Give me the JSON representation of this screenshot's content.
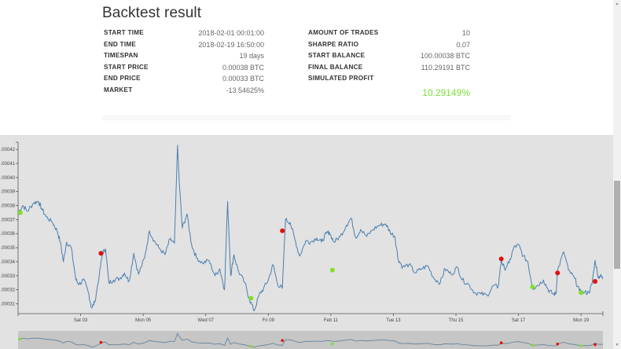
{
  "title": "Backtest result",
  "stats_left": [
    {
      "label": "START TIME",
      "value": "2018-02-01 00:01:00"
    },
    {
      "label": "END TIME",
      "value": "2018-02-19 16:50:00"
    },
    {
      "label": "TIMESPAN",
      "value": "19 days"
    },
    {
      "label": "START PRICE",
      "value": "0.00038 BTC"
    },
    {
      "label": "END PRICE",
      "value": "0.00033 BTC"
    },
    {
      "label": "MARKET",
      "value": "-13.54625%"
    }
  ],
  "stats_right": [
    {
      "label": "AMOUNT OF TRADES",
      "value": "10"
    },
    {
      "label": "SHARPE RATIO",
      "value": "0.07"
    },
    {
      "label": "START BALANCE",
      "value": "100.00038 BTC"
    },
    {
      "label": "FINAL BALANCE",
      "value": "110.29191 BTC"
    },
    {
      "label": "SIMULATED PROFIT",
      "value": ""
    }
  ],
  "simulated_profit": "10.29149%",
  "colors": {
    "profit": "#7dde3a",
    "line": "#4a7fb0",
    "buy": "#7fe02a",
    "sell": "#e01010",
    "chart_bg": "#e2e2e2",
    "navigator_bg": "#c6c6c6"
  },
  "scrollbar": {
    "up_icon": "▲",
    "down_icon": "▼"
  },
  "chart_data": {
    "type": "line",
    "title": "",
    "xlabel": "",
    "ylabel": "",
    "ylim": [
      0.000303,
      0.000424
    ],
    "y_ticks": [
      ".00031",
      ".00032",
      ".00033",
      ".00034",
      ".00035",
      ".00036",
      ".00037",
      ".00038",
      ".00039",
      ".00040",
      ".00041",
      ".00042"
    ],
    "x_ticks": [
      "Sat 03",
      "Mon 05",
      "Wed 07",
      "Fri 09",
      "Feb 11",
      "Tue 13",
      "Thu 15",
      "Sat 17",
      "Mon 19"
    ],
    "x_tick_days": [
      2,
      4,
      6,
      8,
      10,
      12,
      14,
      16,
      18
    ],
    "x_range_days": [
      0,
      18.7
    ],
    "series": [
      {
        "name": "price",
        "points": [
          [
            0.0,
            0.000375
          ],
          [
            0.15,
            0.00038
          ],
          [
            0.3,
            0.000376
          ],
          [
            0.5,
            0.000382
          ],
          [
            0.65,
            0.000383
          ],
          [
            0.75,
            0.000378
          ],
          [
            0.9,
            0.000372
          ],
          [
            1.1,
            0.000368
          ],
          [
            1.25,
            0.000362
          ],
          [
            1.35,
            0.000354
          ],
          [
            1.45,
            0.00034
          ],
          [
            1.55,
            0.000354
          ],
          [
            1.7,
            0.00035
          ],
          [
            1.85,
            0.000327
          ],
          [
            1.95,
            0.000324
          ],
          [
            2.1,
            0.000327
          ],
          [
            2.25,
            0.000318
          ],
          [
            2.35,
            0.000307
          ],
          [
            2.45,
            0.000311
          ],
          [
            2.6,
            0.000331
          ],
          [
            2.7,
            0.000346
          ],
          [
            2.8,
            0.000349
          ],
          [
            2.9,
            0.000325
          ],
          [
            3.05,
            0.000327
          ],
          [
            3.25,
            0.000328
          ],
          [
            3.4,
            0.000332
          ],
          [
            3.55,
            0.000326
          ],
          [
            3.7,
            0.000346
          ],
          [
            3.85,
            0.000331
          ],
          [
            4.05,
            0.000343
          ],
          [
            4.2,
            0.000362
          ],
          [
            4.35,
            0.000355
          ],
          [
            4.5,
            0.00035
          ],
          [
            4.7,
            0.000345
          ],
          [
            4.85,
            0.000356
          ],
          [
            5.0,
            0.000353
          ],
          [
            5.1,
            0.000423
          ],
          [
            5.15,
            0.000398
          ],
          [
            5.25,
            0.000364
          ],
          [
            5.4,
            0.000374
          ],
          [
            5.55,
            0.000352
          ],
          [
            5.7,
            0.000343
          ],
          [
            5.9,
            0.000339
          ],
          [
            6.1,
            0.000341
          ],
          [
            6.3,
            0.00033
          ],
          [
            6.45,
            0.000335
          ],
          [
            6.6,
            0.00032
          ],
          [
            6.7,
            0.000383
          ],
          [
            6.8,
            0.00033
          ],
          [
            6.9,
            0.000345
          ],
          [
            7.05,
            0.000333
          ],
          [
            7.25,
            0.000325
          ],
          [
            7.4,
            0.000313
          ],
          [
            7.55,
            0.000305
          ],
          [
            7.7,
            0.000316
          ],
          [
            7.85,
            0.000321
          ],
          [
            8.0,
            0.000327
          ],
          [
            8.15,
            0.000338
          ],
          [
            8.3,
            0.000324
          ],
          [
            8.45,
            0.000321
          ],
          [
            8.55,
            0.00037
          ],
          [
            8.7,
            0.000368
          ],
          [
            8.85,
            0.000356
          ],
          [
            9.0,
            0.000344
          ],
          [
            9.2,
            0.000355
          ],
          [
            9.35,
            0.000354
          ],
          [
            9.55,
            0.000357
          ],
          [
            9.7,
            0.000354
          ],
          [
            9.85,
            0.00036
          ],
          [
            9.95,
            0.000361
          ],
          [
            10.1,
            0.000354
          ],
          [
            10.3,
            0.000358
          ],
          [
            10.5,
            0.000366
          ],
          [
            10.65,
            0.000371
          ],
          [
            10.8,
            0.000357
          ],
          [
            10.95,
            0.000363
          ],
          [
            11.15,
            0.000358
          ],
          [
            11.35,
            0.000363
          ],
          [
            11.55,
            0.000366
          ],
          [
            11.75,
            0.000367
          ],
          [
            11.9,
            0.000361
          ],
          [
            12.05,
            0.000358
          ],
          [
            12.15,
            0.000342
          ],
          [
            12.3,
            0.000336
          ],
          [
            12.5,
            0.000338
          ],
          [
            12.7,
            0.000332
          ],
          [
            12.9,
            0.000335
          ],
          [
            13.1,
            0.000337
          ],
          [
            13.3,
            0.000328
          ],
          [
            13.5,
            0.000325
          ],
          [
            13.65,
            0.000335
          ],
          [
            13.85,
            0.000331
          ],
          [
            14.05,
            0.000336
          ],
          [
            14.2,
            0.000327
          ],
          [
            14.4,
            0.000324
          ],
          [
            14.6,
            0.000318
          ],
          [
            14.8,
            0.000317
          ],
          [
            15.0,
            0.000316
          ],
          [
            15.2,
            0.000323
          ],
          [
            15.35,
            0.000322
          ],
          [
            15.45,
            0.000341
          ],
          [
            15.55,
            0.000335
          ],
          [
            15.7,
            0.000339
          ],
          [
            15.85,
            0.00035
          ],
          [
            16.0,
            0.000352
          ],
          [
            16.15,
            0.000344
          ],
          [
            16.3,
            0.00034
          ],
          [
            16.45,
            0.000321
          ],
          [
            16.6,
            0.000323
          ],
          [
            16.8,
            0.000327
          ],
          [
            16.95,
            0.00032
          ],
          [
            17.1,
            0.000317
          ],
          [
            17.2,
            0.000317
          ],
          [
            17.25,
            0.000334
          ],
          [
            17.45,
            0.000347
          ],
          [
            17.6,
            0.000334
          ],
          [
            17.8,
            0.000328
          ],
          [
            17.95,
            0.000319
          ],
          [
            18.1,
            0.000318
          ],
          [
            18.25,
            0.000318
          ],
          [
            18.35,
            0.000324
          ],
          [
            18.45,
            0.000341
          ],
          [
            18.55,
            0.000329
          ],
          [
            18.62,
            0.00033
          ],
          [
            18.7,
            0.000328
          ]
        ]
      }
    ],
    "trades": [
      {
        "type": "buy",
        "day": 0.07,
        "price": 0.000375
      },
      {
        "type": "sell",
        "day": 2.65,
        "price": 0.000346
      },
      {
        "type": "buy",
        "day": 7.45,
        "price": 0.000314
      },
      {
        "type": "sell",
        "day": 8.45,
        "price": 0.000362
      },
      {
        "type": "buy",
        "day": 10.05,
        "price": 0.000334
      },
      {
        "type": "sell",
        "day": 15.45,
        "price": 0.000342
      },
      {
        "type": "buy",
        "day": 16.45,
        "price": 0.000322
      },
      {
        "type": "sell",
        "day": 17.25,
        "price": 0.000332
      },
      {
        "type": "buy",
        "day": 18.0,
        "price": 0.000318
      },
      {
        "type": "sell",
        "day": 18.45,
        "price": 0.000326
      }
    ],
    "navigator": {
      "present": true
    }
  }
}
